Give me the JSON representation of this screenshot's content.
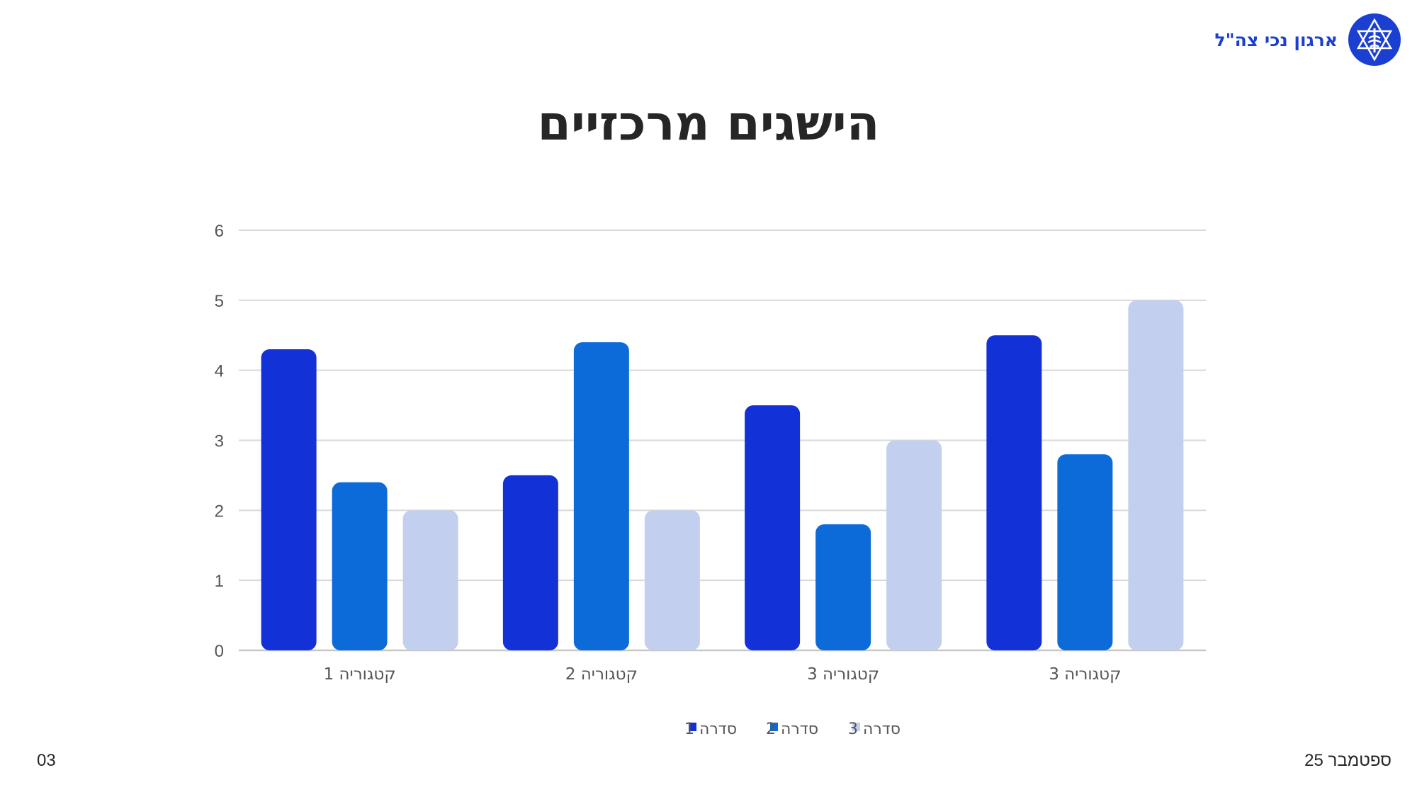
{
  "header": {
    "org_name": "ארגון נכי צה\"ל",
    "logo_icon": "star-of-david-emblem-icon"
  },
  "slide": {
    "title": "הישגים מרכזיים",
    "footer_date": "ספטמבר 25",
    "page_number": "03"
  },
  "colors": {
    "series1": "#1232d8",
    "series2": "#0d6bd9",
    "series3": "#c2cfef",
    "grid": "#d9d9d9",
    "axis_text": "#555555",
    "brand": "#1a3fd1"
  },
  "chart_data": {
    "type": "bar",
    "title": "",
    "xlabel": "",
    "ylabel": "",
    "categories": [
      "קטגוריה 1",
      "קטגוריה 2",
      "קטגוריה 3",
      "קטגוריה 3"
    ],
    "series": [
      {
        "name": "סדרה 1",
        "values": [
          4.3,
          2.5,
          3.5,
          4.5
        ]
      },
      {
        "name": "סדרה 2",
        "values": [
          2.4,
          4.4,
          1.8,
          2.8
        ]
      },
      {
        "name": "סדרה 3",
        "values": [
          2.0,
          2.0,
          3.0,
          5.0
        ]
      }
    ],
    "ylim": [
      0,
      6
    ],
    "yticks": [
      0,
      1,
      2,
      3,
      4,
      5,
      6
    ],
    "grid": true,
    "legend": "bottom"
  }
}
